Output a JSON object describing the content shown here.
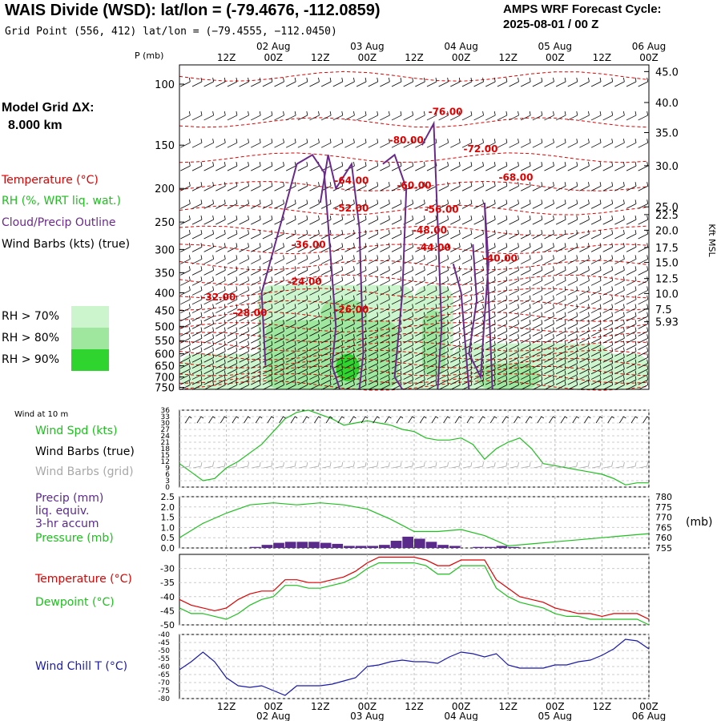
{
  "header": {
    "title": "WAIS Divide (WSD):  lat/lon = (-79.4676, -112.0859)",
    "subtitle": "Grid Point (556, 412) lat/lon = (−79.4555, −112.0450)",
    "cycle_line1": "AMPS WRF Forecast Cycle:",
    "cycle_line2": "2025-08-01 / 00  Z"
  },
  "model_grid": {
    "line1": "Model Grid ΔX:",
    "line2": "8.000 km"
  },
  "legend": {
    "temperature": "Temperature (°C)",
    "rh": "RH (%, WRT liq. wat.)",
    "cloud": "Cloud/Precip Outline",
    "wind_barbs": "Wind Barbs (kts) (true)",
    "rh70": "RH > 70%",
    "rh80": "RH > 80%",
    "rh90": "RH > 90%"
  },
  "colors": {
    "temperature": "#e00000",
    "rh_label": "#e00000",
    "cloud": "#6a2a8a",
    "rh70": "#cdf5cd",
    "rh80": "#9fe69f",
    "rh90": "#2fd42f",
    "wind_speed": "#1fbf1f",
    "wind_grid": "#a8a8a8",
    "precip": "#5a2a8a",
    "pressure": "#1fbf1f",
    "dewpoint": "#1fbf1f",
    "wind_chill": "#1a1aa8"
  },
  "time_axis": {
    "top_dates": [
      "02 Aug",
      "03 Aug",
      "04 Aug",
      "05 Aug",
      "06 Aug"
    ],
    "hour_labels": [
      "12Z",
      "00Z",
      "12Z",
      "00Z",
      "12Z",
      "00Z",
      "12Z",
      "00Z",
      "12Z",
      "00Z"
    ],
    "bottom_dates": [
      "02 Aug",
      "03 Aug",
      "04 Aug",
      "05 Aug",
      "06 Aug"
    ]
  },
  "chart_data": [
    {
      "type": "heatmap",
      "name": "sounding",
      "ylabel_left": "P (mb)",
      "ylabel_right": "Kft MSL",
      "pressure_ticks": [
        100,
        150,
        200,
        250,
        300,
        350,
        400,
        450,
        500,
        550,
        600,
        650,
        700,
        750
      ],
      "height_ticks": [
        "45.0",
        "40.0",
        "35.0",
        "30.0",
        "25.0",
        "22.5",
        "20.0",
        "17.5",
        "15.0",
        "12.5",
        "10.0",
        "7.5",
        "5.93"
      ],
      "height_tick_pressure": [
        92,
        113,
        138,
        172,
        226,
        238,
        264,
        296,
        327,
        364,
        402,
        446,
        485
      ],
      "ylim_mb": [
        88,
        760
      ],
      "temperature_labels": [
        {
          "label": "-76.00",
          "time_h": 68,
          "p_mb": 120
        },
        {
          "label": "-72.00",
          "time_h": 77,
          "p_mb": 154
        },
        {
          "label": "-80.00",
          "time_h": 58,
          "p_mb": 145
        },
        {
          "label": "-68.00",
          "time_h": 86,
          "p_mb": 186
        },
        {
          "label": "-64.00",
          "time_h": 44,
          "p_mb": 190
        },
        {
          "label": "-60.00",
          "time_h": 60,
          "p_mb": 196
        },
        {
          "label": "-56.00",
          "time_h": 67,
          "p_mb": 230
        },
        {
          "label": "-52.00",
          "time_h": 44,
          "p_mb": 228
        },
        {
          "label": "-48.00",
          "time_h": 64,
          "p_mb": 264
        },
        {
          "label": "-44.00",
          "time_h": 65,
          "p_mb": 296
        },
        {
          "label": "-40.00",
          "time_h": 82,
          "p_mb": 318
        },
        {
          "label": "-36.00",
          "time_h": 33,
          "p_mb": 291
        },
        {
          "label": "-24.00",
          "time_h": 32,
          "p_mb": 371
        },
        {
          "label": "-32.00",
          "time_h": 10,
          "p_mb": 412
        },
        {
          "label": "-26.00",
          "time_h": 44,
          "p_mb": 447
        },
        {
          "label": "-28.00",
          "time_h": 18,
          "p_mb": 457
        }
      ]
    },
    {
      "type": "line",
      "name": "wind_10m",
      "caption": "Wind at 10 m",
      "ylabels": [
        "Wind Spd (kts)",
        "Wind Barbs (true)",
        "Wind Barbs (grid)"
      ],
      "yticks": [
        0,
        3,
        6,
        9,
        12,
        15,
        18,
        21,
        24,
        27,
        30,
        33,
        36
      ],
      "ylim": [
        0,
        36
      ],
      "series": [
        {
          "name": "Wind Spd (kts)",
          "x": [
            0,
            3,
            6,
            9,
            12,
            15,
            18,
            21,
            24,
            27,
            30,
            33,
            36,
            39,
            42,
            45,
            48,
            51,
            54,
            57,
            60,
            63,
            66,
            69,
            72,
            75,
            78,
            81,
            84,
            87,
            90,
            93,
            96,
            99,
            102,
            105,
            108,
            111,
            114,
            117,
            120
          ],
          "values": [
            11,
            7,
            3,
            4,
            9,
            12,
            16,
            20,
            26,
            32,
            35,
            36,
            34,
            32,
            29,
            30,
            31,
            30,
            29,
            27,
            26,
            23,
            22,
            22,
            23,
            20,
            13,
            18,
            21,
            23,
            18,
            11,
            10,
            9,
            8,
            7,
            6,
            4,
            1,
            2,
            2
          ]
        }
      ]
    },
    {
      "type": "bar",
      "name": "precip_pressure",
      "ylabels": [
        "Precip (mm)",
        "liq. equiv.",
        "3-hr accum",
        "Pressure (mb)"
      ],
      "ylabel_right": "(mb)",
      "yticks_left": [
        "0.0",
        "0.5",
        "1.0",
        "1.5",
        "2.0",
        "2.5"
      ],
      "yticks_right": [
        "755",
        "760",
        "765",
        "770",
        "775",
        "780"
      ],
      "ylim": [
        0,
        2.5
      ],
      "ylim_right": [
        755,
        780
      ],
      "precip_bars": {
        "x": [
          18,
          21,
          24,
          27,
          30,
          33,
          36,
          39,
          42,
          45,
          48,
          51,
          54,
          57,
          60,
          63,
          66,
          69,
          75,
          78,
          81,
          84
        ],
        "values": [
          0.05,
          0.15,
          0.25,
          0.3,
          0.3,
          0.3,
          0.25,
          0.2,
          0.1,
          0.1,
          0.1,
          0.15,
          0.35,
          0.55,
          0.45,
          0.3,
          0.15,
          0.1,
          0.05,
          0.05,
          0.1,
          0.05
        ]
      },
      "series": [
        {
          "name": "Pressure (mb)",
          "x": [
            0,
            6,
            12,
            18,
            24,
            30,
            36,
            42,
            48,
            54,
            60,
            66,
            72,
            78,
            84,
            90,
            96,
            102,
            108,
            114,
            120
          ],
          "values": [
            760,
            767,
            772,
            776,
            777,
            776,
            777,
            776,
            774,
            769,
            763,
            763,
            764,
            761,
            756,
            757,
            758,
            759,
            760,
            761,
            762
          ]
        }
      ]
    },
    {
      "type": "line",
      "name": "temperature_dewpoint",
      "ylabels": [
        "Temperature (°C)",
        "Dewpoint (°C)"
      ],
      "yticks": [
        -50,
        -45,
        -40,
        -35,
        -30
      ],
      "ylim": [
        -50,
        -25
      ],
      "series": [
        {
          "name": "Temperature (°C)",
          "x": [
            0,
            3,
            6,
            9,
            12,
            15,
            18,
            21,
            24,
            27,
            30,
            33,
            36,
            39,
            42,
            45,
            48,
            51,
            54,
            57,
            60,
            63,
            66,
            69,
            72,
            75,
            78,
            81,
            84,
            87,
            90,
            93,
            96,
            99,
            102,
            105,
            108,
            111,
            114,
            117,
            120
          ],
          "values": [
            -41,
            -43,
            -44,
            -45,
            -44,
            -41,
            -39,
            -38,
            -38,
            -34,
            -34,
            -35,
            -35,
            -34,
            -33,
            -31,
            -28,
            -26,
            -26,
            -26,
            -26,
            -27,
            -29,
            -29,
            -27,
            -27,
            -27,
            -34,
            -37,
            -40,
            -41,
            -42,
            -44,
            -45,
            -46,
            -46,
            -47,
            -46,
            -46,
            -46,
            -48
          ]
        },
        {
          "name": "Dewpoint (°C)",
          "x": [
            0,
            3,
            6,
            9,
            12,
            15,
            18,
            21,
            24,
            27,
            30,
            33,
            36,
            39,
            42,
            45,
            48,
            51,
            54,
            57,
            60,
            63,
            66,
            69,
            72,
            75,
            78,
            81,
            84,
            87,
            90,
            93,
            96,
            99,
            102,
            105,
            108,
            111,
            114,
            117,
            120
          ],
          "values": [
            -44,
            -46,
            -46,
            -47,
            -48,
            -46,
            -43,
            -41,
            -40,
            -36,
            -36,
            -37,
            -37,
            -36,
            -35,
            -33,
            -30,
            -28,
            -28,
            -28,
            -28,
            -29,
            -32,
            -32,
            -29,
            -29,
            -29,
            -37,
            -40,
            -42,
            -43,
            -44,
            -46,
            -47,
            -47,
            -48,
            -48,
            -48,
            -48,
            -48,
            -50
          ]
        }
      ]
    },
    {
      "type": "line",
      "name": "wind_chill",
      "ylabels": [
        "Wind Chill T (°C)"
      ],
      "yticks": [
        -80,
        -75,
        -70,
        -65,
        -60,
        -55,
        -50,
        -45,
        -40
      ],
      "ylim": [
        -80,
        -40
      ],
      "series": [
        {
          "name": "Wind Chill T (°C)",
          "x": [
            0,
            3,
            6,
            9,
            12,
            15,
            18,
            21,
            24,
            27,
            30,
            33,
            36,
            39,
            42,
            45,
            48,
            51,
            54,
            57,
            60,
            63,
            66,
            69,
            72,
            75,
            78,
            81,
            84,
            87,
            90,
            93,
            96,
            99,
            102,
            105,
            108,
            111,
            114,
            117,
            120
          ],
          "values": [
            -62,
            -57,
            -51,
            -57,
            -67,
            -72,
            -73,
            -72,
            -75,
            -78,
            -72,
            -72,
            -72,
            -71,
            -69,
            -67,
            -60,
            -59,
            -57,
            -56,
            -57,
            -57,
            -58,
            -54,
            -51,
            -52,
            -54,
            -52,
            -59,
            -61,
            -61,
            -61,
            -59,
            -59,
            -57,
            -56,
            -53,
            -49,
            -43,
            -44,
            -49
          ]
        }
      ]
    }
  ]
}
